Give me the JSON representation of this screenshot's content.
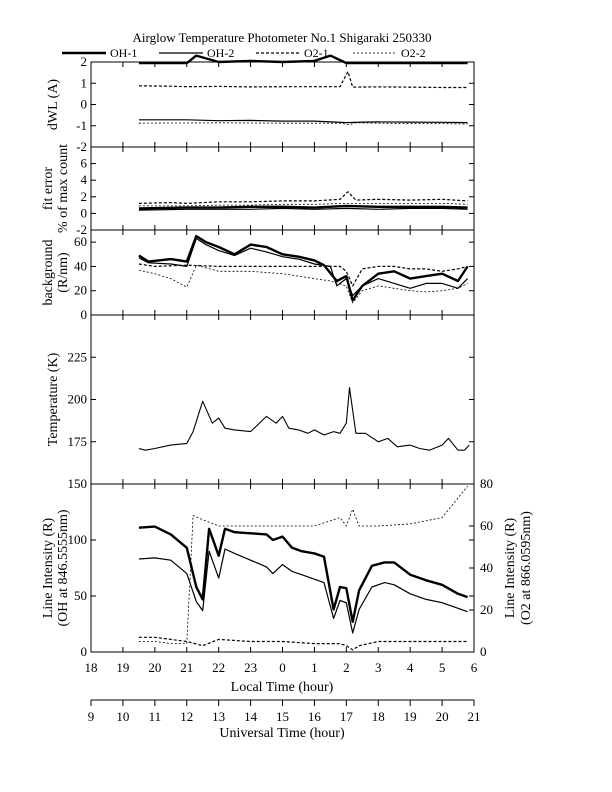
{
  "chart_data": {
    "type": "line",
    "title": "Airglow Temperature Photometer No.1  Shigaraki  250330",
    "legend": {
      "placement": "top",
      "entries": [
        "OH-1",
        "OH-2",
        "O2-1",
        "O2-2"
      ]
    },
    "x_axes": {
      "local": {
        "label": "Local Time (hour)",
        "range": [
          18,
          30
        ],
        "ticks": [
          "18",
          "19",
          "20",
          "21",
          "22",
          "23",
          "0",
          "1",
          "2",
          "3",
          "4",
          "5",
          "6"
        ]
      },
      "universal": {
        "label": "Universal Time (hour)",
        "range": [
          9,
          21
        ],
        "ticks": [
          "9",
          "10",
          "11",
          "12",
          "13",
          "14",
          "15",
          "16",
          "17",
          "18",
          "19",
          "20",
          "21"
        ]
      }
    },
    "panels": [
      {
        "id": "dwl",
        "ylabel": "dWL (A)",
        "ylim": [
          -2,
          2
        ],
        "yticks": [
          "-2",
          "-1",
          "0",
          "1",
          "2"
        ],
        "series": [
          {
            "name": "OH-1",
            "x": [
              19.5,
              20.5,
              21.0,
              21.3,
              22.0,
              23.0,
              24.0,
              25.0,
              25.5,
              26.0,
              26.2,
              27.0,
              28.0,
              29.0,
              29.8
            ],
            "y": [
              1.95,
              1.95,
              1.95,
              2.3,
              2.0,
              2.05,
              2.0,
              2.05,
              2.3,
              1.95,
              1.95,
              1.95,
              1.95,
              1.95,
              1.95
            ]
          },
          {
            "name": "OH-2",
            "x": [
              19.5,
              20.5,
              21.0,
              22.0,
              23.0,
              24.0,
              25.0,
              25.5,
              26.0,
              26.5,
              27.0,
              28.0,
              29.0,
              29.8
            ],
            "y": [
              -0.72,
              -0.72,
              -0.72,
              -0.76,
              -0.75,
              -0.78,
              -0.78,
              -0.82,
              -0.85,
              -0.83,
              -0.82,
              -0.83,
              -0.84,
              -0.85
            ]
          },
          {
            "name": "O2-1",
            "x": [
              19.5,
              20.5,
              21.0,
              22.0,
              23.0,
              24.0,
              25.0,
              25.8,
              26.05,
              26.2,
              27.0,
              28.0,
              29.0,
              29.8
            ],
            "y": [
              0.88,
              0.86,
              0.84,
              0.85,
              0.83,
              0.84,
              0.84,
              0.84,
              1.55,
              0.82,
              0.83,
              0.82,
              0.8,
              0.8
            ]
          },
          {
            "name": "O2-2",
            "x": [
              19.5,
              20.5,
              21.0,
              22.0,
              23.0,
              24.0,
              25.0,
              25.8,
              26.1,
              26.3,
              27.0,
              28.0,
              29.0,
              29.8
            ],
            "y": [
              -0.88,
              -0.87,
              -0.87,
              -0.86,
              -0.87,
              -0.88,
              -0.88,
              -0.88,
              -0.95,
              -0.86,
              -0.88,
              -0.9,
              -0.9,
              -0.92
            ]
          }
        ]
      },
      {
        "id": "fit",
        "ylabel": "fit error",
        "ylabel2": "% of max count",
        "ylim": [
          -2,
          8
        ],
        "yticks": [
          "-2",
          "0",
          "2",
          "4",
          "6"
        ],
        "series": [
          {
            "name": "OH-1",
            "x": [
              19.5,
              21.0,
              22.0,
              23.0,
              24.0,
              25.0,
              26.0,
              27.0,
              28.0,
              29.0,
              29.8
            ],
            "y": [
              0.6,
              0.7,
              0.7,
              0.8,
              0.8,
              0.7,
              0.9,
              0.8,
              0.8,
              0.8,
              0.7
            ]
          },
          {
            "name": "OH-2",
            "x": [
              19.5,
              21.0,
              22.0,
              23.0,
              24.0,
              25.0,
              26.0,
              27.0,
              28.0,
              29.0,
              29.8
            ],
            "y": [
              0.4,
              0.5,
              0.5,
              0.5,
              0.6,
              0.5,
              0.6,
              0.5,
              0.6,
              0.6,
              0.5
            ]
          },
          {
            "name": "O2-1",
            "x": [
              19.5,
              20.5,
              21.0,
              22.0,
              23.0,
              24.0,
              25.0,
              25.8,
              26.05,
              26.3,
              27.0,
              28.0,
              29.0,
              29.8
            ],
            "y": [
              1.2,
              1.3,
              1.2,
              1.4,
              1.4,
              1.5,
              1.5,
              1.7,
              2.6,
              1.6,
              1.7,
              1.6,
              1.7,
              1.5
            ]
          },
          {
            "name": "O2-2",
            "x": [
              19.5,
              20.5,
              21.0,
              22.0,
              23.0,
              24.0,
              25.0,
              26.0,
              27.0,
              28.0,
              29.0,
              29.8
            ],
            "y": [
              0.9,
              0.9,
              0.9,
              1.0,
              1.0,
              1.1,
              1.1,
              1.2,
              1.2,
              1.2,
              1.2,
              1.1
            ]
          }
        ]
      },
      {
        "id": "bg",
        "ylabel": "background",
        "ylabel2": "(R/nm)",
        "ylim": [
          0,
          70
        ],
        "yticks": [
          "0",
          "20",
          "40",
          "60"
        ],
        "series": [
          {
            "name": "OH-1",
            "x": [
              19.5,
              19.8,
              20.5,
              21.0,
              21.3,
              21.6,
              22.0,
              22.5,
              23.0,
              23.5,
              24.0,
              24.5,
              25.0,
              25.3,
              25.7,
              26.0,
              26.2,
              26.5,
              27.0,
              27.5,
              28.0,
              28.5,
              29.0,
              29.5,
              29.8
            ],
            "y": [
              49,
              44,
              46,
              44,
              65,
              60,
              56,
              50,
              58,
              56,
              50,
              48,
              45,
              41,
              28,
              32,
              12,
              24,
              34,
              36,
              30,
              32,
              34,
              28,
              40
            ]
          },
          {
            "name": "OH-2",
            "x": [
              19.5,
              19.8,
              20.5,
              21.0,
              21.3,
              21.6,
              22.0,
              22.5,
              23.0,
              23.5,
              24.0,
              24.5,
              25.0,
              25.5,
              25.7,
              26.0,
              26.2,
              26.5,
              27.0,
              27.5,
              28.0,
              28.5,
              29.0,
              29.5,
              29.8
            ],
            "y": [
              47,
              43,
              42,
              40,
              63,
              58,
              53,
              49,
              55,
              52,
              48,
              46,
              42,
              40,
              24,
              30,
              16,
              24,
              30,
              26,
              22,
              26,
              26,
              22,
              30
            ]
          },
          {
            "name": "O2-1",
            "x": [
              19.5,
              20.0,
              21.0,
              22.0,
              23.0,
              24.0,
              25.0,
              25.8,
              26.0,
              26.2,
              26.5,
              27.0,
              27.5,
              28.0,
              28.5,
              29.0,
              29.5,
              29.8
            ],
            "y": [
              42,
              40,
              41,
              40,
              40,
              40,
              40,
              40,
              36,
              24,
              38,
              40,
              40,
              38,
              38,
              36,
              38,
              40
            ]
          },
          {
            "name": "O2-2",
            "x": [
              19.5,
              20.0,
              20.5,
              21.0,
              21.3,
              22.0,
              23.0,
              24.0,
              25.0,
              25.5,
              26.0,
              26.2,
              26.5,
              27.0,
              27.5,
              28.0,
              28.5,
              29.0,
              29.5,
              29.8
            ],
            "y": [
              37,
              34,
              30,
              23,
              41,
              36,
              36,
              34,
              30,
              28,
              24,
              10,
              20,
              24,
              22,
              20,
              19,
              20,
              22,
              26
            ]
          }
        ]
      },
      {
        "id": "temp",
        "ylabel": "Temperature (K)",
        "ylim": [
          150,
          250
        ],
        "yticks": [
          "175",
          "200",
          "225"
        ],
        "series": [
          {
            "name": "Temperature",
            "x": [
              19.5,
              19.7,
              20.0,
              20.5,
              21.0,
              21.2,
              21.5,
              21.8,
              22.0,
              22.2,
              22.5,
              23.0,
              23.5,
              23.8,
              24.0,
              24.2,
              24.5,
              24.8,
              25.0,
              25.3,
              25.6,
              25.8,
              26.0,
              26.1,
              26.3,
              26.6,
              27.0,
              27.3,
              27.6,
              28.0,
              28.3,
              28.6,
              29.0,
              29.2,
              29.5,
              29.7,
              29.85
            ],
            "y": [
              171,
              170,
              171,
              173,
              174,
              181,
              199,
              186,
              189,
              183,
              182,
              181,
              190,
              186,
              190,
              183,
              182,
              180,
              182,
              179,
              181,
              180,
              186,
              207,
              180,
              180,
              175,
              177,
              172,
              173,
              171,
              170,
              173,
              177,
              170,
              170,
              173
            ]
          }
        ]
      },
      {
        "id": "intensity",
        "ylabel": "Line Intensity (R)",
        "ylabel2": "(OH at 846.5555nm)",
        "ylim": [
          0,
          150
        ],
        "yticks": [
          "0",
          "50",
          "100",
          "150"
        ],
        "ylabel_right": "Line Intensity (R)",
        "ylabel_right2": "(O2 at 866.0595nm)",
        "ylim_right": [
          0,
          80
        ],
        "yticks_right": [
          "0",
          "20",
          "40",
          "60",
          "80"
        ],
        "series": [
          {
            "name": "OH-1",
            "axis": "left",
            "x": [
              19.5,
              20.0,
              20.5,
              21.0,
              21.3,
              21.5,
              21.7,
              22.0,
              22.2,
              22.5,
              23.0,
              23.5,
              23.7,
              24.0,
              24.3,
              24.6,
              25.0,
              25.3,
              25.6,
              25.8,
              26.0,
              26.2,
              26.4,
              26.8,
              27.2,
              27.5,
              28.0,
              28.5,
              29.0,
              29.5,
              29.8
            ],
            "y": [
              111,
              112,
              105,
              93,
              58,
              47,
              110,
              86,
              110,
              107,
              106,
              105,
              100,
              103,
              93,
              90,
              88,
              85,
              38,
              58,
              57,
              27,
              55,
              77,
              80,
              80,
              69,
              64,
              60,
              52,
              49
            ]
          },
          {
            "name": "OH-2",
            "axis": "left",
            "x": [
              19.5,
              20.0,
              20.5,
              21.0,
              21.3,
              21.5,
              21.7,
              22.0,
              22.2,
              22.5,
              23.0,
              23.5,
              23.7,
              24.0,
              24.3,
              24.6,
              25.0,
              25.3,
              25.6,
              25.8,
              26.0,
              26.2,
              26.4,
              26.8,
              27.2,
              27.5,
              28.0,
              28.5,
              29.0,
              29.5,
              29.8
            ],
            "y": [
              83,
              84,
              82,
              70,
              45,
              37,
              90,
              66,
              92,
              88,
              82,
              76,
              70,
              78,
              72,
              69,
              65,
              62,
              30,
              46,
              44,
              17,
              38,
              58,
              62,
              60,
              52,
              47,
              44,
              39,
              36
            ]
          },
          {
            "name": "O2-1",
            "axis": "right",
            "x": [
              19.5,
              20.0,
              20.5,
              21.0,
              21.5,
              22.0,
              23.0,
              24.0,
              25.0,
              25.8,
              26.0,
              26.2,
              26.4,
              27.0,
              28.0,
              29.0,
              29.8
            ],
            "y": [
              7,
              7,
              6,
              5,
              3,
              6,
              5,
              5,
              4,
              4,
              3,
              1,
              3,
              5,
              5,
              5,
              5
            ]
          },
          {
            "name": "O2-2",
            "axis": "right",
            "x": [
              19.5,
              20.0,
              20.5,
              21.0,
              21.2,
              21.5,
              22.0,
              23.0,
              24.0,
              25.0,
              25.8,
              26.0,
              26.2,
              26.4,
              27.0,
              28.0,
              29.0,
              29.8
            ],
            "y": [
              5,
              5,
              4,
              4,
              65,
              63,
              60,
              60,
              60,
              60,
              64,
              60,
              68,
              60,
              60,
              61,
              64,
              79
            ]
          }
        ]
      }
    ]
  }
}
